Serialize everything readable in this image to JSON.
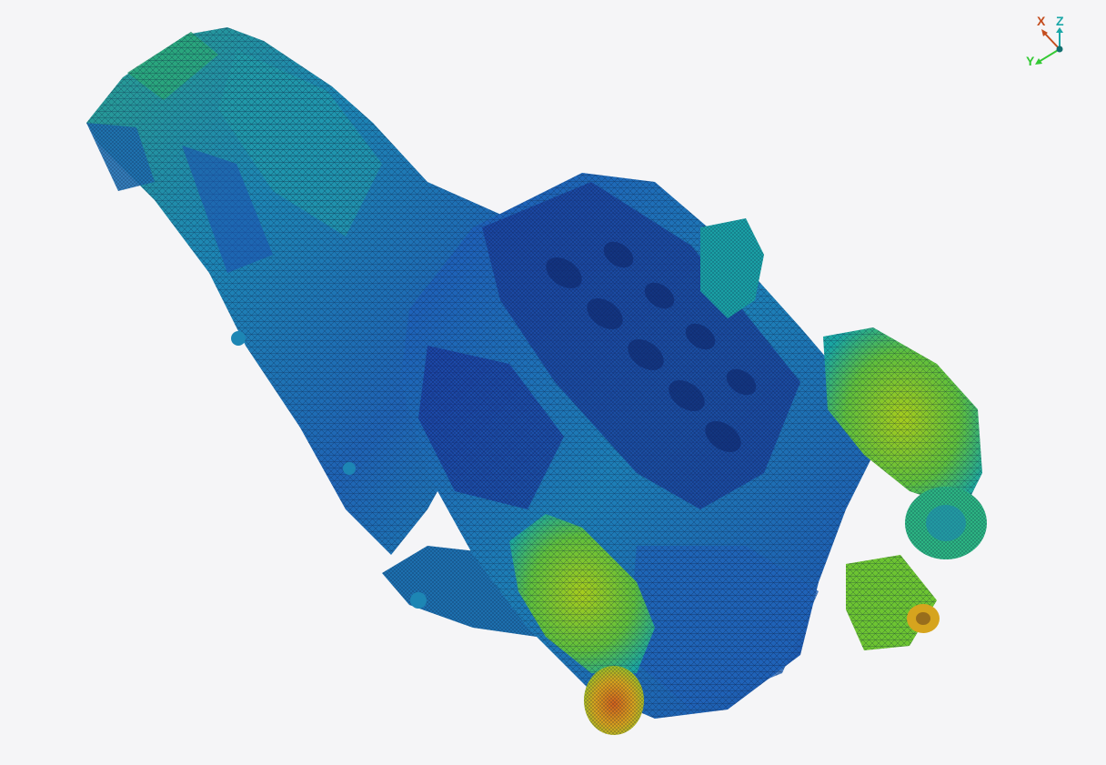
{
  "viewport": {
    "background": "#f5f5f7"
  },
  "model": {
    "display": "fea-mesh-contour",
    "icon": "engine-transmission-mesh",
    "colormap": [
      "#1c2f9e",
      "#1f56b8",
      "#1d86b4",
      "#1aa5a2",
      "#2bb677",
      "#6cc431",
      "#a6cc1d",
      "#d6a41e",
      "#d1601c"
    ]
  },
  "triad": {
    "x": {
      "label": "X",
      "color": "#c44d1e"
    },
    "y": {
      "label": "Y",
      "color": "#34c934"
    },
    "z": {
      "label": "Z",
      "color": "#1aa7a7"
    }
  }
}
